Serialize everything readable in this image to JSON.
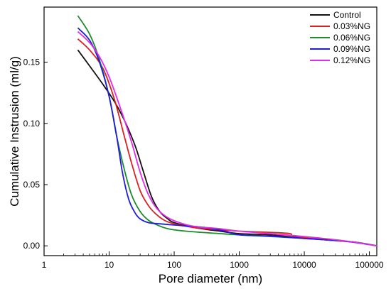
{
  "chart_data": {
    "type": "line",
    "title": "",
    "xlabel": "Pore diameter (nm)",
    "ylabel": "Cumulative Instrusion (ml/g)",
    "xscale": "log",
    "xlim": [
      1,
      130000
    ],
    "ylim": [
      -0.008,
      0.195
    ],
    "x_ticks": [
      1,
      10,
      100,
      1000,
      10000,
      100000
    ],
    "x_tick_labels": [
      "1",
      "10",
      "100",
      "1000",
      "10000",
      "100000"
    ],
    "y_ticks": [
      0.0,
      0.05,
      0.1,
      0.15
    ],
    "y_tick_labels": [
      "0.00",
      "0.05",
      "0.10",
      "0.15"
    ],
    "legend_position": "top-right",
    "grid": false,
    "series": [
      {
        "name": "Control",
        "color": "#111111",
        "x": [
          3.3,
          5,
          8,
          12,
          17,
          25,
          33,
          45,
          60,
          80,
          100,
          200,
          500,
          1000,
          3000,
          7000,
          20000,
          60000,
          130000
        ],
        "y": [
          0.16,
          0.147,
          0.132,
          0.118,
          0.103,
          0.082,
          0.062,
          0.04,
          0.028,
          0.022,
          0.019,
          0.015,
          0.012,
          0.01,
          0.009,
          0.007,
          0.005,
          0.003,
          0.0
        ]
      },
      {
        "name": "0.03%NG",
        "color": "#d42424",
        "x": [
          3.3,
          5,
          8,
          12,
          17,
          22,
          30,
          40,
          50,
          70,
          100,
          200,
          500,
          1000,
          3000,
          6000,
          7000,
          20000,
          60000,
          130000
        ],
        "y": [
          0.169,
          0.16,
          0.145,
          0.12,
          0.09,
          0.068,
          0.045,
          0.033,
          0.027,
          0.021,
          0.018,
          0.015,
          0.013,
          0.012,
          0.011,
          0.01,
          0.008,
          0.005,
          0.003,
          0.0
        ]
      },
      {
        "name": "0.06%NG",
        "color": "#1f8a2e",
        "x": [
          3.3,
          5,
          7,
          10,
          13,
          17,
          22,
          30,
          40,
          55,
          80,
          150,
          500,
          1000,
          5000,
          20000,
          60000,
          130000
        ],
        "y": [
          0.188,
          0.173,
          0.153,
          0.122,
          0.09,
          0.063,
          0.042,
          0.028,
          0.021,
          0.017,
          0.014,
          0.012,
          0.01,
          0.009,
          0.007,
          0.005,
          0.003,
          0.0
        ]
      },
      {
        "name": "0.09%NG",
        "color": "#1f1fd0",
        "x": [
          3.3,
          5,
          7,
          10,
          13,
          16,
          20,
          25,
          30,
          40,
          60,
          100,
          300,
          600,
          1000,
          3000,
          10000,
          40000,
          130000
        ],
        "y": [
          0.178,
          0.168,
          0.151,
          0.122,
          0.09,
          0.06,
          0.038,
          0.027,
          0.022,
          0.019,
          0.018,
          0.017,
          0.015,
          0.012,
          0.009,
          0.008,
          0.006,
          0.004,
          0.0
        ]
      },
      {
        "name": "0.12%NG",
        "color": "#e02ee8",
        "x": [
          3.3,
          5,
          7,
          10,
          15,
          22,
          30,
          40,
          55,
          80,
          120,
          200,
          500,
          1000,
          5000,
          20000,
          60000,
          130000
        ],
        "y": [
          0.175,
          0.166,
          0.155,
          0.138,
          0.112,
          0.085,
          0.06,
          0.042,
          0.03,
          0.023,
          0.019,
          0.016,
          0.014,
          0.012,
          0.009,
          0.006,
          0.003,
          0.0
        ]
      }
    ]
  }
}
